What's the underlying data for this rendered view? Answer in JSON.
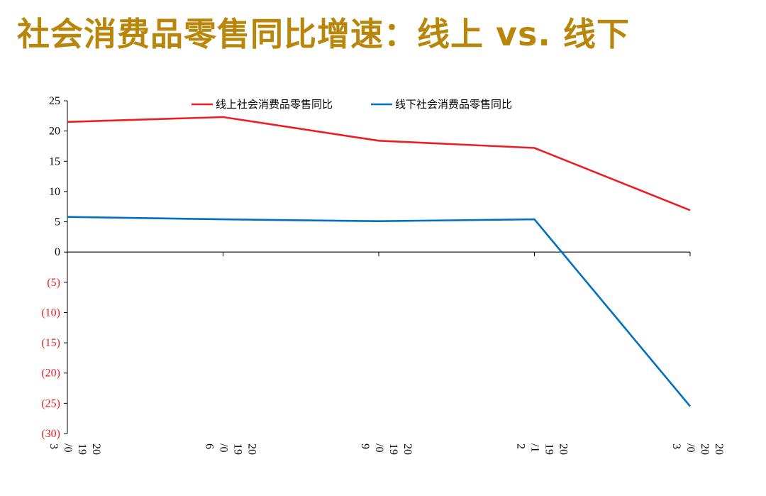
{
  "title": "社会消费品零售同比增速：线上 vs. 线下",
  "colors": {
    "title": "#b8860b",
    "online": "#ee1c25",
    "offline": "#0070c0",
    "negative_tick": "#ee1c25",
    "axis": "#000000"
  },
  "chart_data": {
    "type": "line",
    "categories": [
      "2019/03",
      "2019/06",
      "2019/09",
      "2019/12",
      "2020/03"
    ],
    "x_tick_lines": [
      [
        "20",
        "19",
        "/0",
        "3"
      ],
      [
        "20",
        "19",
        "/0",
        "6"
      ],
      [
        "20",
        "19",
        "/0",
        "9"
      ],
      [
        "20",
        "19",
        "/1",
        "2"
      ],
      [
        "20",
        "20",
        "/0",
        "3"
      ]
    ],
    "series": [
      {
        "name": "线上社会消费品零售同比",
        "color": "#ee1c25",
        "values": [
          21.5,
          22.3,
          18.4,
          17.2,
          6.9
        ]
      },
      {
        "name": "线下社会消费品零售同比",
        "color": "#0070c0",
        "values": [
          5.8,
          5.4,
          5.1,
          5.4,
          -25.5
        ]
      }
    ],
    "ylim": [
      -30,
      25
    ],
    "yticks": [
      25,
      20,
      15,
      10,
      5,
      0,
      -5,
      -10,
      -15,
      -20,
      -25,
      -30
    ],
    "ytick_labels": [
      "25",
      "20",
      "15",
      "10",
      "5",
      "0",
      "(5)",
      "(10)",
      "(15)",
      "(20)",
      "(25)",
      "(30)"
    ],
    "legend_position": "top-center",
    "grid": false
  }
}
